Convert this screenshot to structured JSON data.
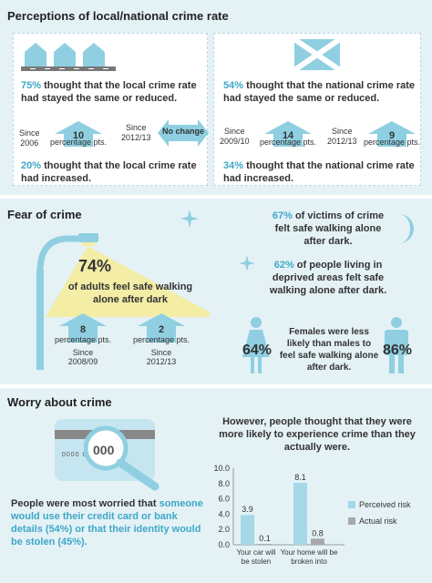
{
  "perceptions": {
    "title": "Perceptions of local/national crime rate",
    "local": {
      "main_pct": "75%",
      "main_text": "thought that the local crime rate had stayed the same or reduced.",
      "since1": "Since",
      "since1_year": "2006",
      "arrow1_num": "10",
      "arrow1_lbl": "percentage pts.",
      "since2": "Since",
      "since2_year": "2012/13",
      "no_change": "No change",
      "inc_pct": "20%",
      "inc_text": "thought that the local crime rate had increased."
    },
    "national": {
      "main_pct": "54%",
      "main_text": "thought that the national crime rate had stayed the same or reduced.",
      "since1": "Since",
      "since1_year": "2009/10",
      "arrow1_num": "14",
      "arrow1_lbl": "percentage pts.",
      "since2": "Since",
      "since2_year": "2012/13",
      "arrow2_num": "9",
      "arrow2_lbl": "percentage pts.",
      "inc_pct": "34%",
      "inc_text": "thought that the national crime rate had increased."
    }
  },
  "fear": {
    "title": "Fear of crime",
    "adults_pct": "74%",
    "adults_text": "of adults feel safe walking alone after dark",
    "arrow1_num": "8",
    "arrow1_lbl": "percentage pts.",
    "arrow1_since": "Since",
    "arrow1_year": "2008/09",
    "arrow2_num": "2",
    "arrow2_lbl": "percentage pts.",
    "arrow2_since": "Since",
    "arrow2_year": "2012/13",
    "victims_pct": "67%",
    "victims_text": "of victims of crime felt safe walking alone after dark.",
    "deprived_pct": "62%",
    "deprived_text": "of people living in deprived areas felt safe walking alone after dark.",
    "gender_text": "Females were less likely than males to feel safe walking alone after dark.",
    "female_pct": "64%",
    "male_pct": "86%"
  },
  "worry": {
    "title": "Worry about crime",
    "card_digits": "0000 0000 0000",
    "card_zoom": "000",
    "worry_lead": "People were most worried that ",
    "worry_highlight": "someone would use their credit card or bank details (54%) or that their identity would be stolen (45%).",
    "however_text": "However, people thought that they were more likely to experience crime than they actually were."
  },
  "chart_data": {
    "type": "bar",
    "categories": [
      "Your car will be stolen",
      "Your home will be broken into"
    ],
    "series": [
      {
        "name": "Perceived risk",
        "values": [
          3.9,
          8.1
        ]
      },
      {
        "name": "Actual risk",
        "values": [
          0.1,
          0.8
        ]
      }
    ],
    "yticks": [
      "10.0",
      "8.0",
      "6.0",
      "4.0",
      "2.0",
      "0.0"
    ],
    "ylim": [
      0,
      10
    ],
    "legend": "right",
    "colors": {
      "perceived": "#a6d8e8",
      "actual": "#a8a8a8"
    }
  }
}
